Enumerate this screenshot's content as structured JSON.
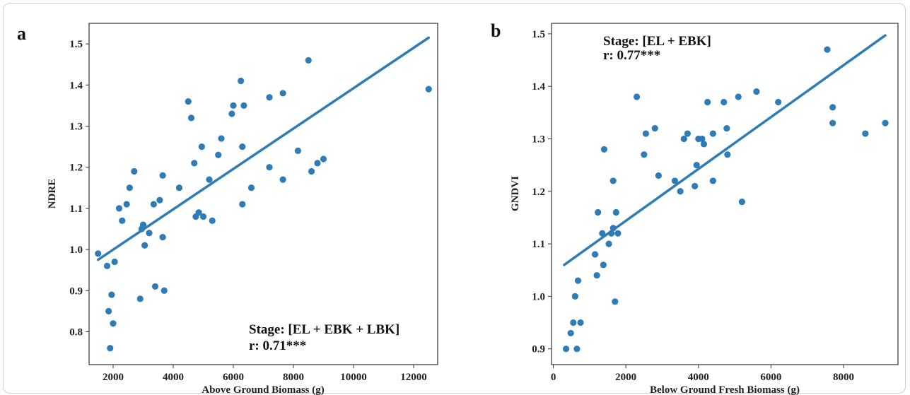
{
  "chart_data": [
    {
      "type": "scatter",
      "panel_label": "a",
      "xlabel": "Above Ground Biomass (g)",
      "ylabel": "NDRE",
      "xlim": [
        1200,
        12800
      ],
      "ylim": [
        0.72,
        1.55
      ],
      "xticks": [
        2000,
        4000,
        6000,
        8000,
        10000,
        12000
      ],
      "yticks": [
        0.8,
        0.9,
        1.0,
        1.1,
        1.2,
        1.3,
        1.4,
        1.5
      ],
      "annotation": {
        "stage": "Stage: [EL + EBK + LBK]",
        "r": "r: 0.71***",
        "position": "bottom-right"
      },
      "fit_line": {
        "x": [
          1500,
          12500
        ],
        "y": [
          0.975,
          1.515
        ]
      },
      "color": "#2f7bb6",
      "points": [
        [
          1500,
          0.99
        ],
        [
          1800,
          0.96
        ],
        [
          1850,
          0.85
        ],
        [
          1900,
          0.76
        ],
        [
          1950,
          0.89
        ],
        [
          2000,
          0.82
        ],
        [
          2050,
          0.97
        ],
        [
          2200,
          1.1
        ],
        [
          2300,
          1.07
        ],
        [
          2450,
          1.11
        ],
        [
          2550,
          1.15
        ],
        [
          2700,
          1.19
        ],
        [
          2900,
          0.88
        ],
        [
          2950,
          1.05
        ],
        [
          3000,
          1.06
        ],
        [
          3050,
          1.01
        ],
        [
          3200,
          1.04
        ],
        [
          3350,
          1.11
        ],
        [
          3400,
          0.91
        ],
        [
          3550,
          1.12
        ],
        [
          3650,
          1.18
        ],
        [
          3650,
          1.03
        ],
        [
          3700,
          0.9
        ],
        [
          4200,
          1.15
        ],
        [
          4500,
          1.36
        ],
        [
          4600,
          1.32
        ],
        [
          4700,
          1.21
        ],
        [
          4750,
          1.08
        ],
        [
          4850,
          1.09
        ],
        [
          4950,
          1.25
        ],
        [
          5000,
          1.08
        ],
        [
          5200,
          1.17
        ],
        [
          5300,
          1.07
        ],
        [
          5500,
          1.23
        ],
        [
          5600,
          1.27
        ],
        [
          5950,
          1.33
        ],
        [
          6000,
          1.35
        ],
        [
          6250,
          1.41
        ],
        [
          6300,
          1.25
        ],
        [
          6300,
          1.11
        ],
        [
          6350,
          1.35
        ],
        [
          6600,
          1.15
        ],
        [
          7200,
          1.37
        ],
        [
          7200,
          1.2
        ],
        [
          7650,
          1.38
        ],
        [
          7650,
          1.17
        ],
        [
          8150,
          1.24
        ],
        [
          8500,
          1.46
        ],
        [
          8600,
          1.19
        ],
        [
          8800,
          1.21
        ],
        [
          9000,
          1.22
        ],
        [
          12500,
          1.39
        ]
      ]
    },
    {
      "type": "scatter",
      "panel_label": "b",
      "xlabel": "Below Ground Fresh Biomass (g)",
      "ylabel": "GNDVI",
      "xlim": [
        -50,
        9500
      ],
      "ylim": [
        0.87,
        1.52
      ],
      "xticks": [
        0,
        2000,
        4000,
        6000,
        8000
      ],
      "yticks": [
        0.9,
        1.0,
        1.1,
        1.2,
        1.3,
        1.4,
        1.5
      ],
      "annotation": {
        "stage": "Stage: [EL + EBK]",
        "r": "r: 0.77***",
        "position": "top-left"
      },
      "fit_line": {
        "x": [
          300,
          9150
        ],
        "y": [
          1.06,
          1.497
        ]
      },
      "color": "#2f7bb6",
      "points": [
        [
          350,
          0.9
        ],
        [
          480,
          0.93
        ],
        [
          550,
          0.95
        ],
        [
          600,
          1.0
        ],
        [
          650,
          0.9
        ],
        [
          680,
          1.03
        ],
        [
          750,
          0.95
        ],
        [
          1150,
          1.08
        ],
        [
          1200,
          1.04
        ],
        [
          1230,
          1.16
        ],
        [
          1350,
          1.12
        ],
        [
          1380,
          1.06
        ],
        [
          1400,
          1.28
        ],
        [
          1530,
          1.1
        ],
        [
          1600,
          1.12
        ],
        [
          1650,
          1.22
        ],
        [
          1650,
          1.13
        ],
        [
          1700,
          0.99
        ],
        [
          1730,
          1.16
        ],
        [
          1780,
          1.12
        ],
        [
          2300,
          1.38
        ],
        [
          2500,
          1.27
        ],
        [
          2550,
          1.31
        ],
        [
          2800,
          1.32
        ],
        [
          2900,
          1.23
        ],
        [
          3350,
          1.22
        ],
        [
          3500,
          1.2
        ],
        [
          3600,
          1.3
        ],
        [
          3700,
          1.31
        ],
        [
          3900,
          1.21
        ],
        [
          3950,
          1.25
        ],
        [
          4000,
          1.3
        ],
        [
          4100,
          1.3
        ],
        [
          4150,
          1.29
        ],
        [
          4250,
          1.37
        ],
        [
          4400,
          1.31
        ],
        [
          4400,
          1.22
        ],
        [
          4700,
          1.37
        ],
        [
          4780,
          1.32
        ],
        [
          4800,
          1.27
        ],
        [
          5100,
          1.38
        ],
        [
          5200,
          1.18
        ],
        [
          5600,
          1.39
        ],
        [
          6200,
          1.37
        ],
        [
          7550,
          1.47
        ],
        [
          7700,
          1.36
        ],
        [
          7700,
          1.33
        ],
        [
          8600,
          1.31
        ],
        [
          9150,
          1.33
        ]
      ]
    }
  ]
}
